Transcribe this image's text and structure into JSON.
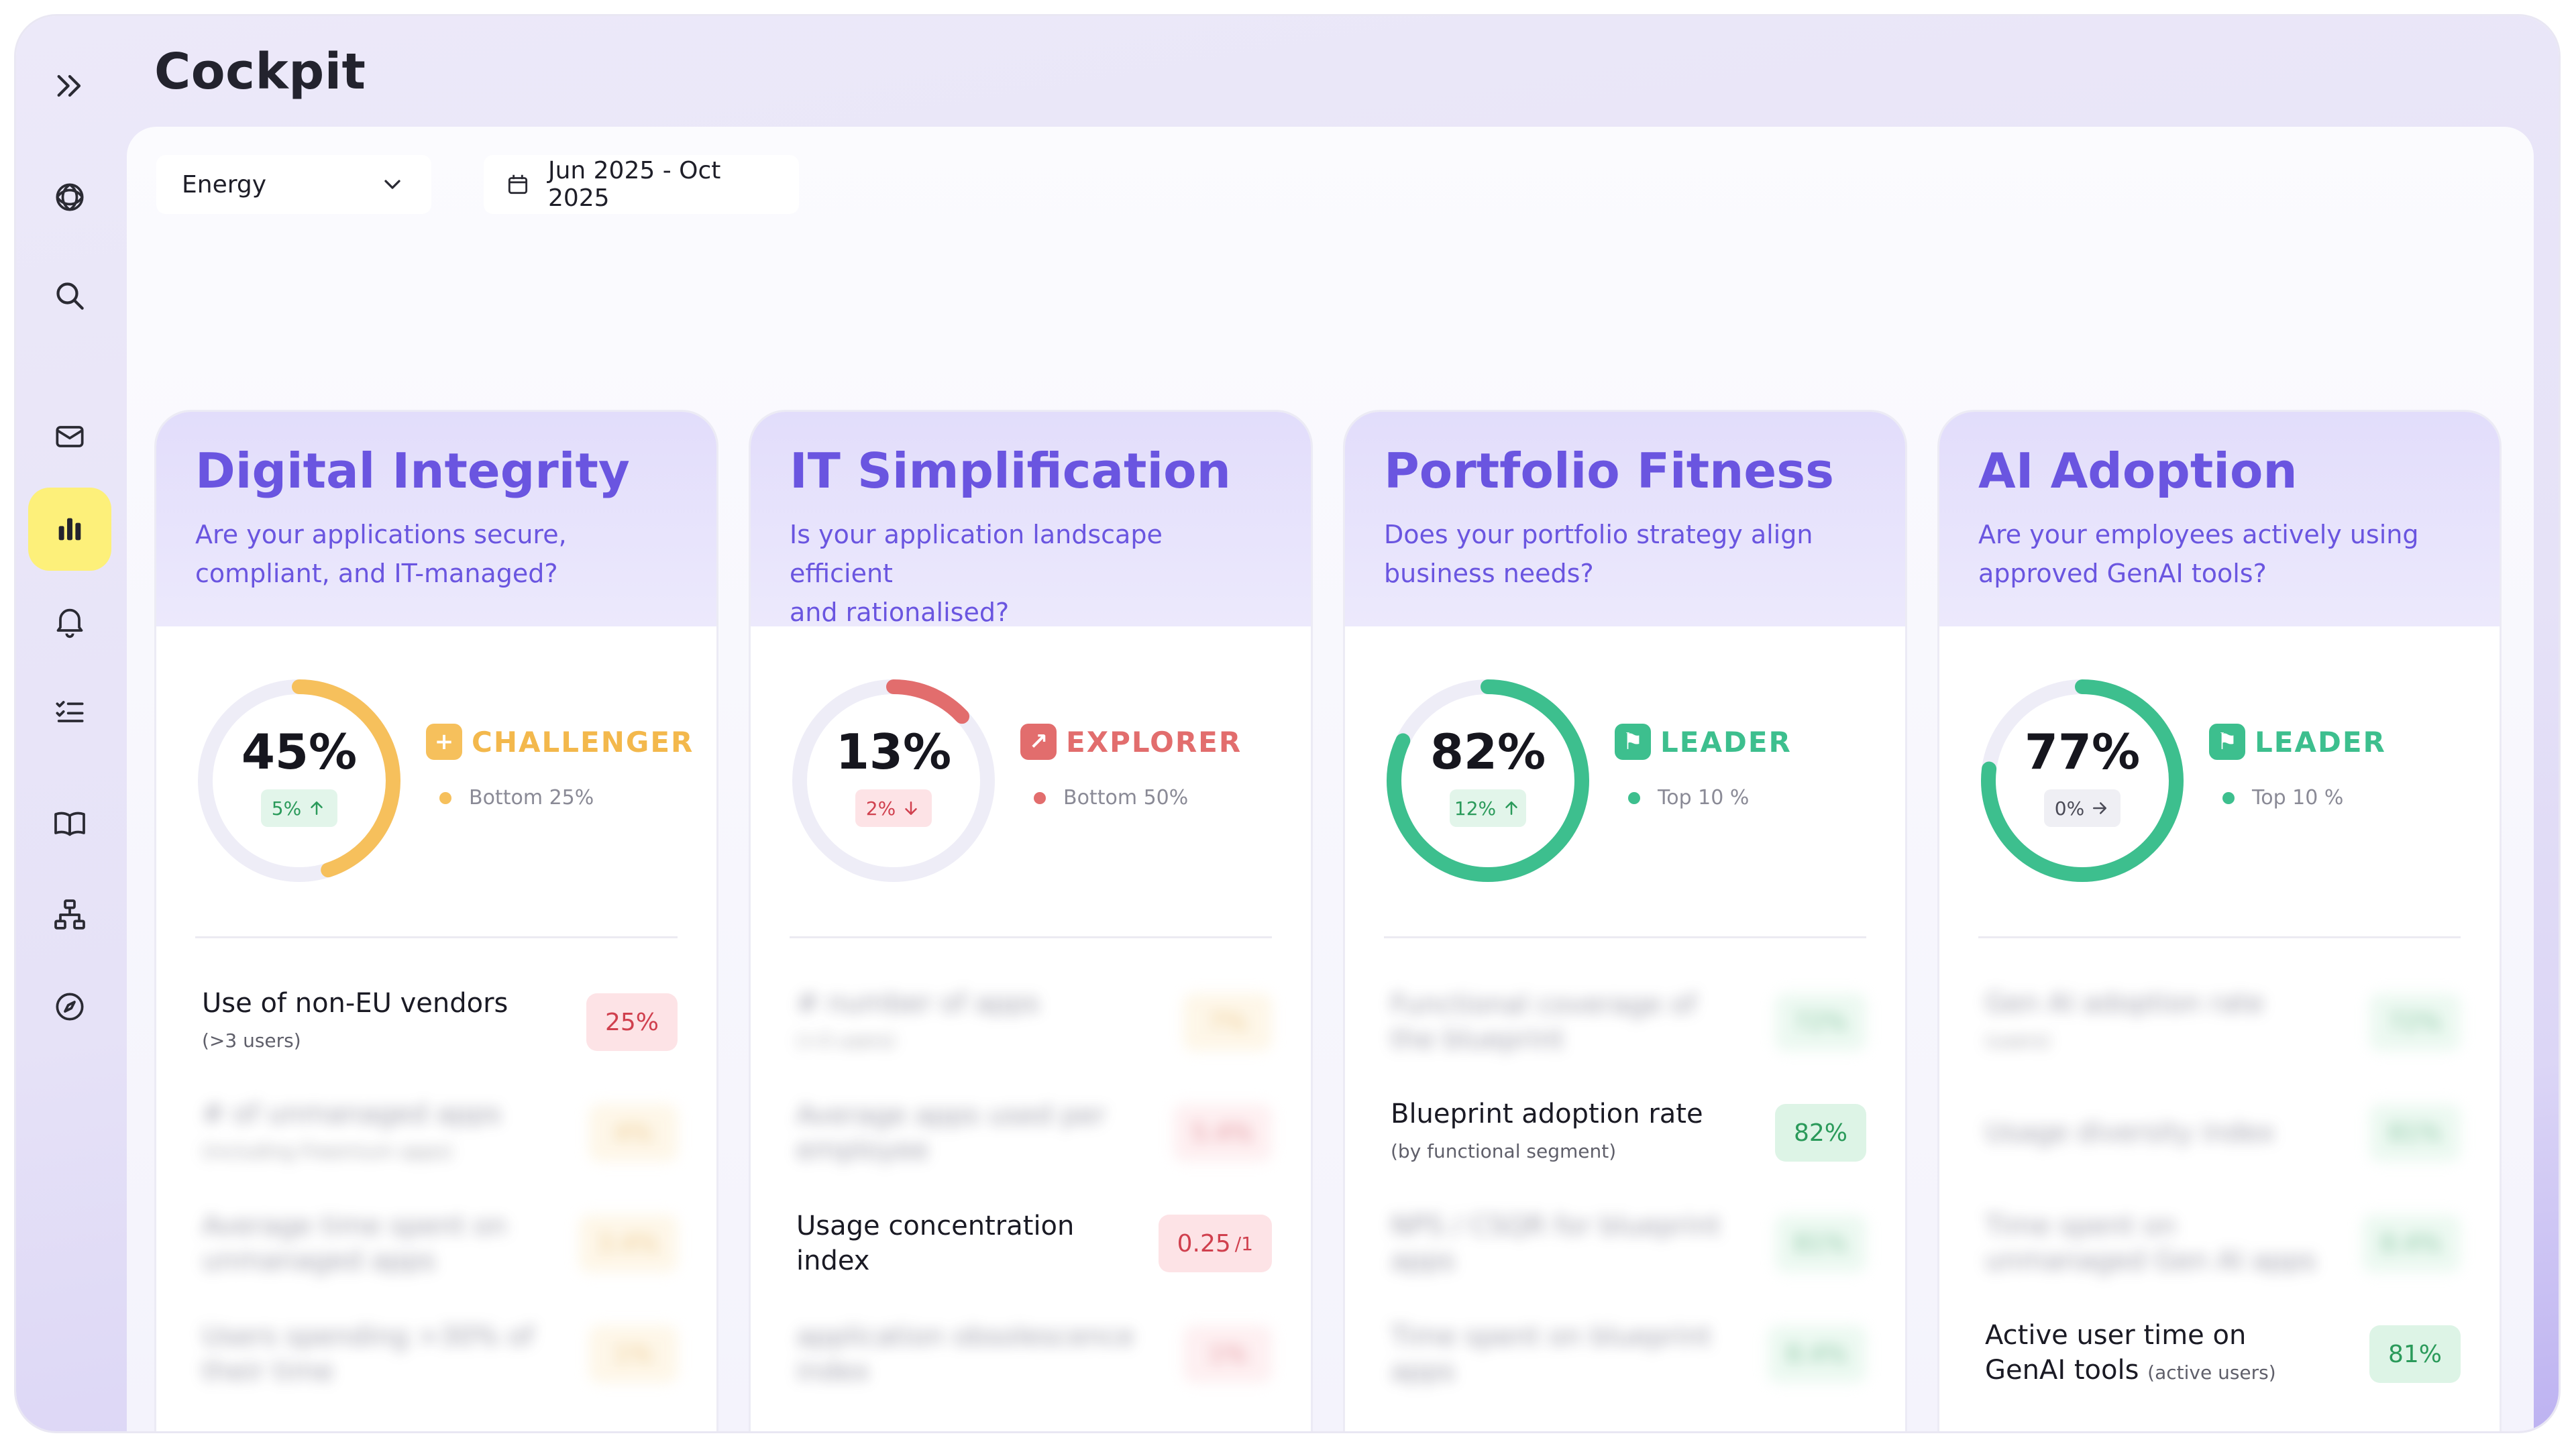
{
  "page_title": "Cockpit",
  "colors": {
    "accent": "#6a55e0",
    "active_nav": "#fdf07a",
    "orange": "#f6c05c",
    "red": "#e26d6d",
    "green": "#3dbf8e"
  },
  "sidebar": {
    "items": [
      {
        "icon": "expand-chevrons-icon"
      },
      {
        "icon": "logo-icon"
      },
      {
        "icon": "search-icon"
      },
      {
        "icon": "mail-icon"
      },
      {
        "icon": "bar-chart-icon",
        "active": true
      },
      {
        "icon": "bell-icon"
      },
      {
        "icon": "checklist-icon"
      },
      {
        "icon": "book-icon"
      },
      {
        "icon": "hierarchy-icon"
      },
      {
        "icon": "compass-icon"
      }
    ]
  },
  "filters": {
    "industry": "Energy",
    "date_range": "Jun 2025 - Oct 2025"
  },
  "cards": [
    {
      "title": "Digital Integrity",
      "subtitle_1": "Are your applications secure,",
      "subtitle_2": "compliant, and IT-managed?",
      "percent": "45%",
      "percent_value": 45,
      "delta": "5%",
      "delta_dir": "up",
      "tier": "CHALLENGER",
      "rank": "Bottom 25%",
      "metrics": [
        {
          "label": "Use of non-EU vendors",
          "sub": "(>3 users)",
          "value": "25%"
        },
        {
          "label": "# of unmanaged apps",
          "sub": "(including Freemium apps)",
          "value": "4%"
        },
        {
          "label": "Average time spent on unmanaged apps",
          "sub": "",
          "value": "3.4%"
        },
        {
          "label": "Users spending >30% of their time",
          "sub": "",
          "value": "1%"
        }
      ]
    },
    {
      "title": "IT Simplification",
      "subtitle_1": "Is your application landscape efficient",
      "subtitle_2": "and rationalised?",
      "percent": "13%",
      "percent_value": 13,
      "delta": "2%",
      "delta_dir": "down",
      "tier": "EXPLORER",
      "rank": "Bottom 50%",
      "metrics": [
        {
          "label": "# number of apps",
          "sub": "(>3 users)",
          "value": "7%"
        },
        {
          "label": "Average apps used per employee",
          "sub": "",
          "value": "5.4%"
        },
        {
          "label": "Usage concentration index",
          "sub": "",
          "value": "0.25",
          "unit": "/1"
        },
        {
          "label": "application obsolescence index",
          "sub": "",
          "value": "1%"
        }
      ]
    },
    {
      "title": "Portfolio Fitness",
      "subtitle_1": "Does your portfolio strategy align",
      "subtitle_2": "business needs?",
      "percent": "82%",
      "percent_value": 82,
      "delta": "12%",
      "delta_dir": "up",
      "tier": "LEADER",
      "rank": "Top 10 %",
      "metrics": [
        {
          "label": "Functional coverage of the blueprint",
          "sub": "",
          "value": "72%"
        },
        {
          "label": "Blueprint adoption rate",
          "sub": "(by functional segment)",
          "value": "82%"
        },
        {
          "label": "NPS / CSQR for blueprint apps",
          "sub": "",
          "value": "81%"
        },
        {
          "label": "Time spent on blueprint apps",
          "sub": "",
          "value": "8.4%"
        }
      ]
    },
    {
      "title": "AI Adoption",
      "subtitle_1": "Are your employees actively using",
      "subtitle_2": "approved GenAI tools?",
      "percent": "77%",
      "percent_value": 77,
      "delta": "0%",
      "delta_dir": "right",
      "tier": "LEADER",
      "rank": "Top 10 %",
      "metrics": [
        {
          "label": "Gen AI adoption rate",
          "sub": "(users)",
          "value": "72%"
        },
        {
          "label": "Usage diversity index",
          "sub": "",
          "value": "81%"
        },
        {
          "label": "Time spent on unmanaged Gen AI apps",
          "sub": "",
          "value": "8.4%"
        },
        {
          "label": "Active user time on GenAI tools",
          "sub": "(active users)",
          "value": "81%"
        }
      ]
    }
  ]
}
